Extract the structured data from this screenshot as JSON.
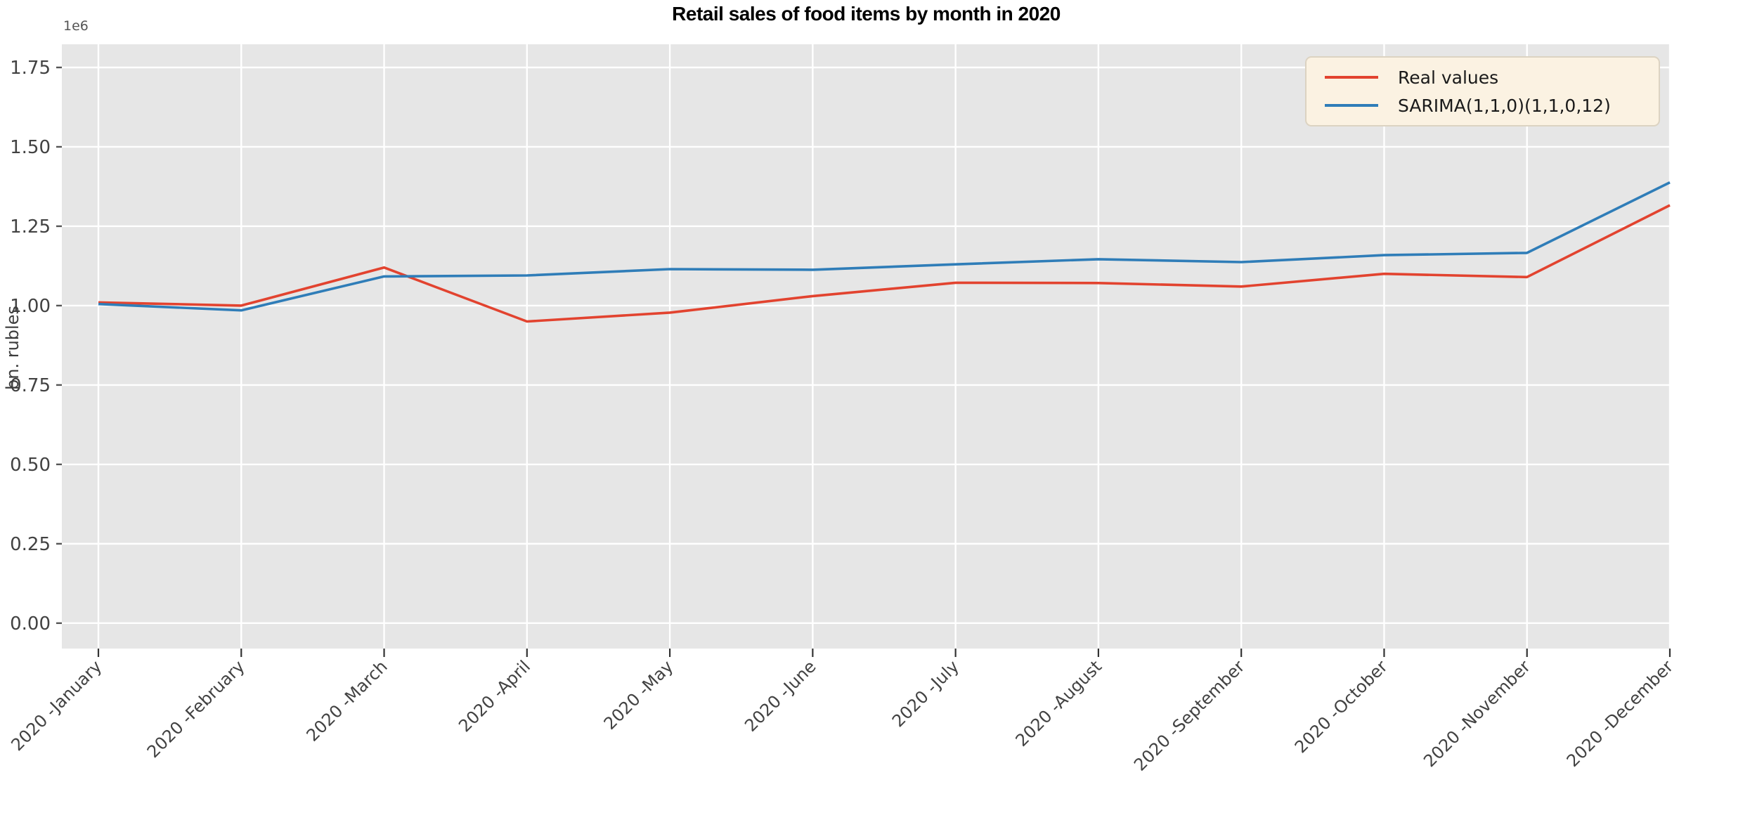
{
  "chart_data": {
    "type": "line",
    "title": "Retail sales of food items by month in 2020",
    "ylabel": "bn. rubles",
    "offset_text": "1e6",
    "categories": [
      "2020 -January",
      "2020 -February",
      "2020 -March",
      "2020 -April",
      "2020 -May",
      "2020 -June",
      "2020 -July",
      "2020 -August",
      "2020 -September",
      "2020 -October",
      "2020 -November",
      "2020 -December"
    ],
    "series": [
      {
        "name": "Real values",
        "color": "#e2432f",
        "values": [
          1010000,
          1000000,
          1120000,
          950000,
          978000,
          1030000,
          1072000,
          1071000,
          1060000,
          1100000,
          1090000,
          1316000
        ]
      },
      {
        "name": "SARIMA(1,1,0)(1,1,0,12)",
        "color": "#2f7db8",
        "values": [
          1005000,
          985000,
          1092000,
          1095000,
          1115000,
          1113000,
          1130000,
          1146000,
          1137000,
          1159000,
          1166000,
          1388000
        ]
      }
    ],
    "y_ticks": [
      0,
      250000,
      500000,
      750000,
      1000000,
      1250000,
      1500000,
      1750000
    ],
    "y_tick_labels": [
      "0.00",
      "0.25",
      "0.50",
      "0.75",
      "1.00",
      "1.25",
      "1.50",
      "1.75"
    ],
    "ylim": [
      -80000,
      1823000
    ],
    "xlabel": "",
    "grid": true,
    "legend_position": "upper right",
    "plot_bg_color": "#e6e6e6",
    "grid_color": "#ffffff",
    "tick_text_color": "#424242",
    "legend_bg_color": "#fbf2e2"
  }
}
